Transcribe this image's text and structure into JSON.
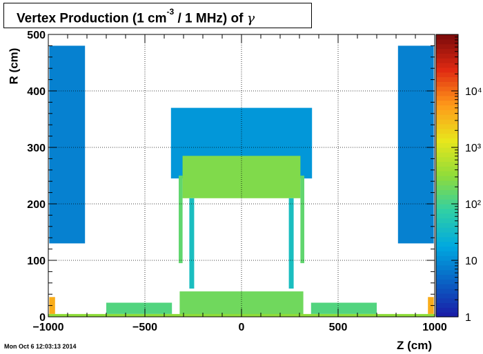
{
  "header": {
    "title_main": "Vertex Production (1 cm",
    "title_sup": "-3",
    "title_rest": " / 1 MHz) of ",
    "title_particle": "γ"
  },
  "footer": {
    "timestamp": "Mon Oct  6 12:03:13 2014"
  },
  "colors": {
    "palette": [
      "#1a1aa6",
      "#0a62c4",
      "#00a8e0",
      "#2fcfa6",
      "#8fdc3a",
      "#e8e61c",
      "#ff9a1a",
      "#e02a12",
      "#7a0a0a"
    ]
  },
  "chart_data": {
    "type": "heatmap",
    "xlabel": "Z (cm)",
    "ylabel": "R (cm)",
    "xlim": [
      -1000,
      1000
    ],
    "ylim": [
      0,
      500
    ],
    "x_ticks": [
      -1000,
      -500,
      0,
      500,
      1000
    ],
    "x_tick_labels": [
      "−1000",
      "−500",
      "0",
      "500",
      "1000"
    ],
    "y_ticks": [
      0,
      100,
      200,
      300,
      400,
      500
    ],
    "grid": true,
    "z_scale": "log",
    "z_range": [
      1,
      100000
    ],
    "colorbar_labels": [
      "1",
      "10",
      "10²",
      "10³",
      "10⁴"
    ],
    "regions": [
      {
        "z": [
          -995,
          -810
        ],
        "r": [
          130,
          480
        ],
        "level": 0.9
      },
      {
        "z": [
          810,
          995
        ],
        "r": [
          130,
          480
        ],
        "level": 0.9
      },
      {
        "z": [
          -365,
          365
        ],
        "r": [
          245,
          370
        ],
        "level": 1.1
      },
      {
        "z": [
          -305,
          305
        ],
        "r": [
          210,
          285
        ],
        "level": 2.4
      },
      {
        "z": [
          -325,
          -305
        ],
        "r": [
          95,
          250
        ],
        "level": 2.2
      },
      {
        "z": [
          305,
          325
        ],
        "r": [
          95,
          250
        ],
        "level": 2.2
      },
      {
        "z": [
          -270,
          -245
        ],
        "r": [
          50,
          210
        ],
        "level": 1.6
      },
      {
        "z": [
          245,
          270
        ],
        "r": [
          50,
          210
        ],
        "level": 1.6
      },
      {
        "z": [
          -700,
          -360
        ],
        "r": [
          5,
          25
        ],
        "level": 2.1
      },
      {
        "z": [
          360,
          700
        ],
        "r": [
          5,
          25
        ],
        "level": 2.1
      },
      {
        "z": [
          -320,
          320
        ],
        "r": [
          3,
          45
        ],
        "level": 2.3
      },
      {
        "z": [
          -995,
          -965
        ],
        "r": [
          5,
          35
        ],
        "level": 3.6
      },
      {
        "z": [
          965,
          995
        ],
        "r": [
          5,
          35
        ],
        "level": 3.6
      },
      {
        "z": [
          -1000,
          1000
        ],
        "r": [
          0,
          5
        ],
        "level": 2.5
      }
    ]
  }
}
